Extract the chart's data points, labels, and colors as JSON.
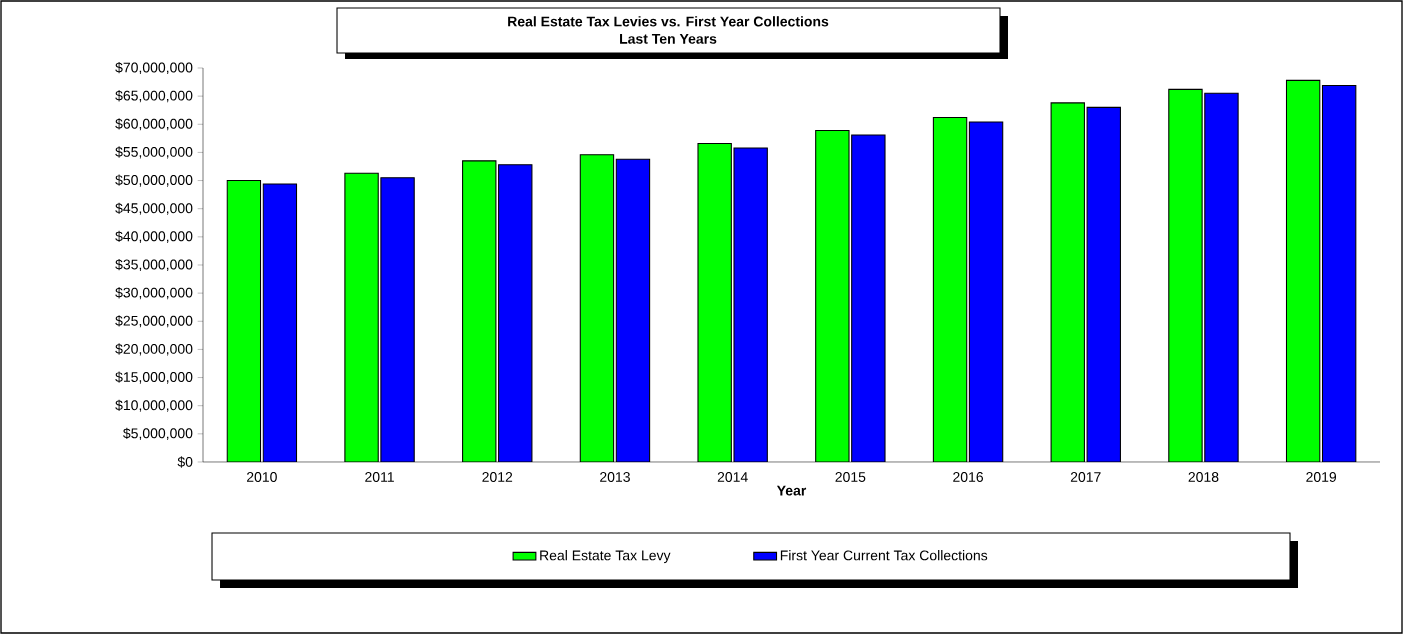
{
  "chart_data": {
    "type": "bar",
    "title": "Real Estate Tax Levies vs. First Year Collections",
    "subtitle": "Last Ten Years",
    "xlabel": "Year",
    "categories": [
      "2010",
      "2011",
      "2012",
      "2013",
      "2014",
      "2015",
      "2016",
      "2017",
      "2018",
      "2019"
    ],
    "series": [
      {
        "name": "Real Estate Tax Levy",
        "color": "#00ff00",
        "values": [
          50000000,
          51300000,
          53500000,
          54600000,
          56600000,
          58900000,
          61200000,
          63800000,
          66200000,
          67800000
        ]
      },
      {
        "name": "First Year Current Tax Collections",
        "color": "#0000ff",
        "values": [
          49400000,
          50500000,
          52800000,
          53800000,
          55800000,
          58100000,
          60400000,
          63000000,
          65500000,
          66900000
        ]
      }
    ],
    "ylim": [
      0,
      70000000
    ],
    "yticks": [
      {
        "value": 0,
        "label": "$0"
      },
      {
        "value": 5000000,
        "label": "$5,000,000"
      },
      {
        "value": 10000000,
        "label": "$10,000,000"
      },
      {
        "value": 15000000,
        "label": "$15,000,000"
      },
      {
        "value": 20000000,
        "label": "$20,000,000"
      },
      {
        "value": 25000000,
        "label": "$25,000,000"
      },
      {
        "value": 30000000,
        "label": "$30,000,000"
      },
      {
        "value": 35000000,
        "label": "$35,000,000"
      },
      {
        "value": 40000000,
        "label": "$40,000,000"
      },
      {
        "value": 45000000,
        "label": "$45,000,000"
      },
      {
        "value": 50000000,
        "label": "$50,000,000"
      },
      {
        "value": 55000000,
        "label": "$55,000,000"
      },
      {
        "value": 60000000,
        "label": "$60,000,000"
      },
      {
        "value": 65000000,
        "label": "$65,000,000"
      },
      {
        "value": 70000000,
        "label": "$70,000,000"
      }
    ],
    "grid": false,
    "legend": "bottom"
  }
}
